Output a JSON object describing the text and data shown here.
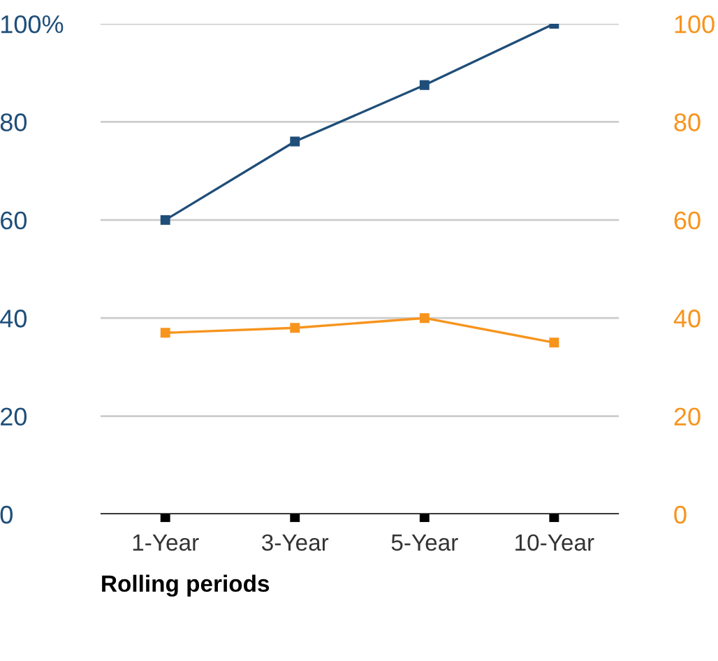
{
  "chart_data": {
    "type": "line",
    "xlabel": "Rolling periods",
    "categories": [
      "1-Year",
      "3-Year",
      "5-Year",
      "10-Year"
    ],
    "series": [
      {
        "color": "#1f4e79",
        "values": [
          60,
          76,
          87.5,
          100
        ]
      },
      {
        "color": "#f7941d",
        "values": [
          37,
          38,
          40,
          35
        ],
        "axis": "y2"
      }
    ],
    "ylim": [
      0,
      100
    ],
    "yticks": [
      0,
      20,
      40,
      60,
      80,
      {
        "value": 100,
        "label": "100%"
      }
    ],
    "y2lim": [
      0,
      100
    ],
    "y2ticks": [
      0,
      20,
      40,
      60,
      80,
      100
    ],
    "grid": "y",
    "marker": "square",
    "line_style": "solid",
    "legend": false
  }
}
